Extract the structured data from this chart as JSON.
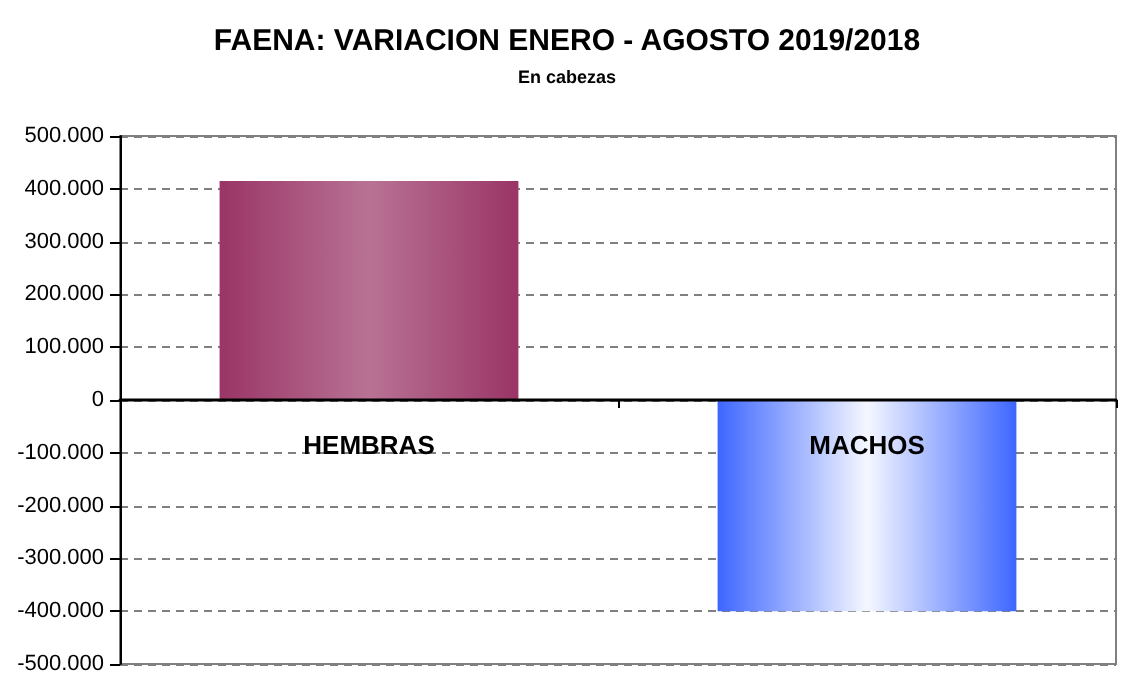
{
  "chart_data": {
    "type": "bar",
    "title": "FAENA: VARIACION ENERO - AGOSTO 2019/2018",
    "subtitle": "En cabezas",
    "categories": [
      "HEMBRAS",
      "MACHOS"
    ],
    "values": [
      415000,
      -400000
    ],
    "colors": [
      "#9a3566",
      "#3d66ff"
    ],
    "ylim": [
      -500000,
      500000
    ],
    "yticks": [
      {
        "value": -500000,
        "label": "-500.000"
      },
      {
        "value": -400000,
        "label": "-400.000"
      },
      {
        "value": -300000,
        "label": "-300.000"
      },
      {
        "value": -200000,
        "label": "-200.000"
      },
      {
        "value": -100000,
        "label": "-100.000"
      },
      {
        "value": 0,
        "label": "0"
      },
      {
        "value": 100000,
        "label": "100.000"
      },
      {
        "value": 200000,
        "label": "200.000"
      },
      {
        "value": 300000,
        "label": "300.000"
      },
      {
        "value": 400000,
        "label": "400.000"
      },
      {
        "value": 500000,
        "label": "500.000"
      }
    ],
    "grid": "y"
  }
}
